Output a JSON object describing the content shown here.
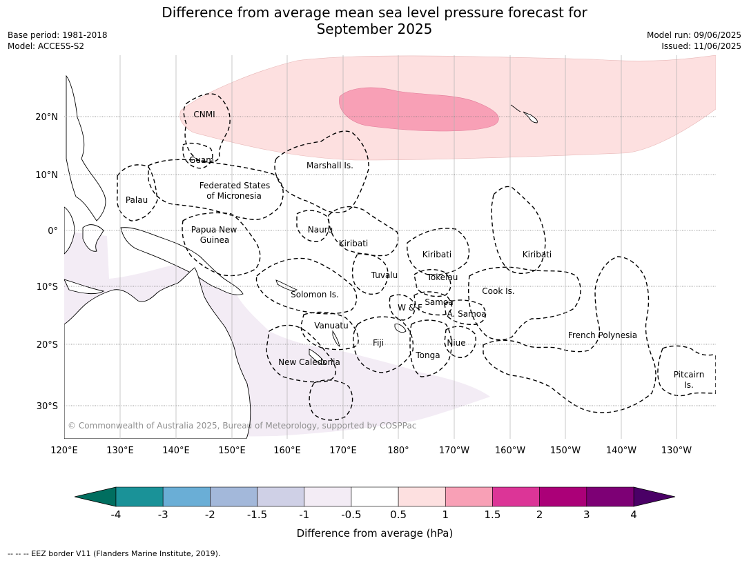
{
  "title_line1": "Difference from average mean sea level pressure forecast for",
  "title_line2": "September 2025",
  "meta_left": {
    "base_period": "Base period: 1981-2018",
    "model": "Model: ACCESS-S2"
  },
  "meta_right": {
    "model_run": "Model run: 09/06/2025",
    "issued": "Issued: 11/06/2025"
  },
  "map": {
    "lon_labels": [
      "120°E",
      "130°E",
      "140°E",
      "150°E",
      "160°E",
      "170°E",
      "180°",
      "170°W",
      "160°W",
      "150°W",
      "140°W",
      "130°W"
    ],
    "lat_labels": [
      "20°N",
      "10°N",
      "0°",
      "10°S",
      "20°S",
      "30°S"
    ],
    "regions": [
      {
        "name": "CNMI"
      },
      {
        "name": "Guam"
      },
      {
        "name": "Marshall Is."
      },
      {
        "name": "Federated States"
      },
      {
        "name": "of Micronesia"
      },
      {
        "name": "Palau"
      },
      {
        "name": "Papua New"
      },
      {
        "name": "Guinea"
      },
      {
        "name": "Nauru"
      },
      {
        "name": "Kiribati"
      },
      {
        "name": "Kiribati"
      },
      {
        "name": "Kiribati"
      },
      {
        "name": "Tuvalu"
      },
      {
        "name": "Tokelau"
      },
      {
        "name": "Solomon Is."
      },
      {
        "name": "Samoa"
      },
      {
        "name": "W & F"
      },
      {
        "name": "A. Samoa"
      },
      {
        "name": "Cook Is."
      },
      {
        "name": "Vanuatu"
      },
      {
        "name": "Fiji"
      },
      {
        "name": "Niue"
      },
      {
        "name": "Tonga"
      },
      {
        "name": "French Polynesia"
      },
      {
        "name": "New Caledonia"
      },
      {
        "name": "Pitcairn"
      },
      {
        "name": "Is."
      }
    ],
    "copyright": "© Commonwealth of Australia 2025, Bureau of Meteorology, supported by COSPPac"
  },
  "colorbar": {
    "ticks": [
      "-4",
      "-3",
      "-2",
      "-1.5",
      "-1",
      "-0.5",
      "0.5",
      "1",
      "1.5",
      "2",
      "3",
      "4"
    ],
    "colors": [
      "#1a9298",
      "#6aaed6",
      "#a3b8da",
      "#cfd0e6",
      "#f3ecf5",
      "#ffffff",
      "#fde0e0",
      "#f8a0b6",
      "#dc3597",
      "#ab0078",
      "#7d0075"
    ],
    "under_color": "#006e5f",
    "over_color": "#4a0066",
    "label": "Difference from average (hPa)"
  },
  "footer": "--  --  -- EEZ border V11 (Flanders Marine Institute, 2019)."
}
